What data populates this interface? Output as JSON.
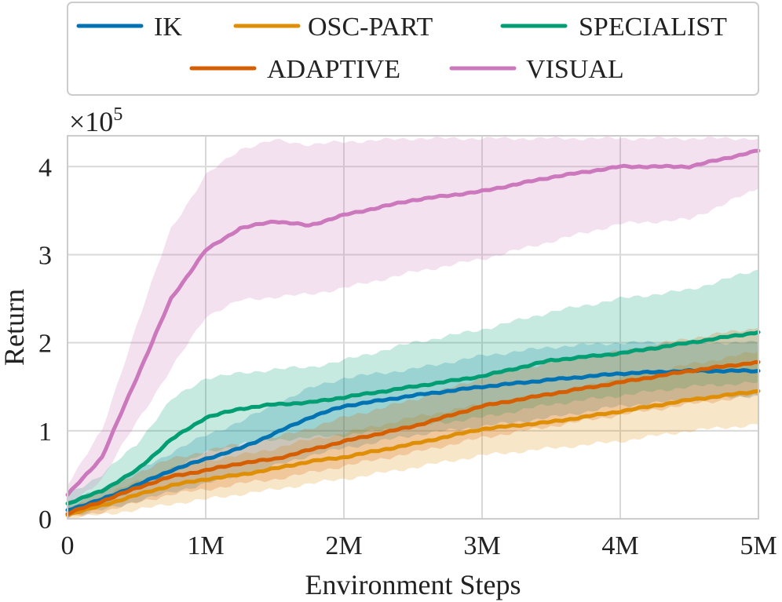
{
  "chart_data": {
    "type": "line",
    "title": "",
    "xlabel": "Environment Steps",
    "ylabel": "Return",
    "y_scale_label": "×10",
    "y_scale_exponent": "5",
    "xlim": [
      0,
      5000000
    ],
    "ylim": [
      0,
      435000
    ],
    "x_ticks": [
      {
        "value": 0,
        "label": "0"
      },
      {
        "value": 1000000,
        "label": "1M"
      },
      {
        "value": 2000000,
        "label": "2M"
      },
      {
        "value": 3000000,
        "label": "3M"
      },
      {
        "value": 4000000,
        "label": "4M"
      },
      {
        "value": 5000000,
        "label": "5M"
      }
    ],
    "y_ticks": [
      {
        "value": 0,
        "label": "0"
      },
      {
        "value": 100000,
        "label": "1"
      },
      {
        "value": 200000,
        "label": "2"
      },
      {
        "value": 300000,
        "label": "3"
      },
      {
        "value": 400000,
        "label": "4"
      }
    ],
    "grid": true,
    "legend_position": "top",
    "series": [
      {
        "name": "IK",
        "color": "#0173b2",
        "x": [
          0,
          250000,
          500000,
          750000,
          1000000,
          1250000,
          1500000,
          1750000,
          2000000,
          2500000,
          3000000,
          3500000,
          4000000,
          4500000,
          5000000
        ],
        "y": [
          10000,
          22000,
          38000,
          55000,
          68000,
          80000,
          97000,
          115000,
          128000,
          140000,
          150000,
          158000,
          165000,
          168000,
          168000
        ],
        "band_low": [
          3000,
          10000,
          20000,
          30000,
          40000,
          50000,
          60000,
          72000,
          80000,
          95000,
          105000,
          115000,
          128000,
          135000,
          140000
        ],
        "band_high": [
          18000,
          35000,
          55000,
          75000,
          95000,
          110000,
          130000,
          148000,
          160000,
          170000,
          185000,
          195000,
          200000,
          200000,
          200000
        ]
      },
      {
        "name": "OSC-PART",
        "color": "#de8f05",
        "x": [
          0,
          250000,
          500000,
          750000,
          1000000,
          1250000,
          1500000,
          1750000,
          2000000,
          2500000,
          3000000,
          3500000,
          4000000,
          4500000,
          5000000
        ],
        "y": [
          5000,
          15000,
          27000,
          38000,
          45000,
          50000,
          57000,
          65000,
          70000,
          85000,
          102000,
          110000,
          122000,
          135000,
          145000
        ],
        "band_low": [
          0,
          5000,
          10000,
          17000,
          22000,
          28000,
          33000,
          40000,
          45000,
          58000,
          72000,
          80000,
          88000,
          100000,
          107000
        ],
        "band_high": [
          12000,
          25000,
          42000,
          57000,
          66000,
          72000,
          80000,
          90000,
          97000,
          115000,
          130000,
          142000,
          160000,
          175000,
          190000
        ]
      },
      {
        "name": "SPECIALIST",
        "color": "#029e73",
        "x": [
          0,
          250000,
          500000,
          750000,
          1000000,
          1250000,
          1500000,
          1750000,
          2000000,
          2500000,
          3000000,
          3500000,
          4000000,
          4500000,
          5000000
        ],
        "y": [
          17000,
          32000,
          55000,
          90000,
          115000,
          125000,
          130000,
          132000,
          138000,
          150000,
          162000,
          180000,
          188000,
          200000,
          212000
        ],
        "band_low": [
          8000,
          18000,
          33000,
          55000,
          75000,
          85000,
          90000,
          92000,
          95000,
          105000,
          115000,
          130000,
          140000,
          150000,
          155000
        ],
        "band_high": [
          28000,
          50000,
          85000,
          135000,
          160000,
          165000,
          170000,
          172000,
          180000,
          200000,
          215000,
          235000,
          250000,
          260000,
          283000
        ]
      },
      {
        "name": "ADAPTIVE",
        "color": "#d55e00",
        "x": [
          0,
          250000,
          500000,
          750000,
          1000000,
          1250000,
          1500000,
          1750000,
          2000000,
          2500000,
          3000000,
          3500000,
          4000000,
          4500000,
          5000000
        ],
        "y": [
          6000,
          20000,
          35000,
          48000,
          55000,
          63000,
          68000,
          78000,
          88000,
          105000,
          128000,
          142000,
          155000,
          168000,
          178000
        ],
        "band_low": [
          0,
          8000,
          18000,
          28000,
          33000,
          40000,
          45000,
          52000,
          60000,
          75000,
          92000,
          105000,
          118000,
          130000,
          140000
        ],
        "band_high": [
          14000,
          32000,
          52000,
          68000,
          77000,
          85000,
          92000,
          103000,
          115000,
          135000,
          160000,
          178000,
          190000,
          205000,
          217000
        ]
      },
      {
        "name": "VISUAL",
        "color": "#cc78bc",
        "x": [
          0,
          250000,
          500000,
          750000,
          1000000,
          1250000,
          1500000,
          1750000,
          2000000,
          2500000,
          3000000,
          3500000,
          4000000,
          4500000,
          5000000
        ],
        "y": [
          27000,
          70000,
          160000,
          250000,
          305000,
          330000,
          338000,
          333000,
          345000,
          362000,
          372000,
          388000,
          400000,
          400000,
          418000
        ],
        "band_low": [
          15000,
          45000,
          110000,
          170000,
          230000,
          248000,
          252000,
          255000,
          262000,
          280000,
          295000,
          315000,
          335000,
          340000,
          375000
        ],
        "band_high": [
          40000,
          100000,
          220000,
          330000,
          390000,
          420000,
          430000,
          425000,
          428000,
          432000,
          432000,
          432000,
          432000,
          432000,
          432000
        ]
      }
    ]
  }
}
